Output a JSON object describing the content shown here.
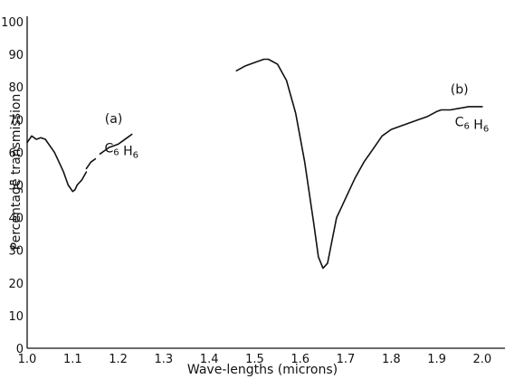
{
  "chart_data": {
    "type": "line",
    "title": "",
    "xlabel": "Wave-lengths (microns)",
    "ylabel": "Percentage transmission",
    "xlim": [
      1.0,
      2.05
    ],
    "ylim": [
      0,
      100
    ],
    "x_ticks": [
      "1.0",
      "1.1",
      "1.2",
      "1.3",
      "1.4",
      "1.5",
      "1.6",
      "1.7",
      "1.8",
      "1.9",
      "2.0"
    ],
    "x_tick_values": [
      1.0,
      1.1,
      1.2,
      1.3,
      1.4,
      1.5,
      1.6,
      1.7,
      1.8,
      1.9,
      2.0
    ],
    "y_ticks": [
      "0",
      "10",
      "20",
      "30",
      "40",
      "50",
      "60",
      "70",
      "80",
      "90",
      "100"
    ],
    "y_tick_values": [
      0,
      10,
      20,
      30,
      40,
      50,
      60,
      70,
      80,
      90,
      100
    ],
    "grid": false,
    "series": [
      {
        "name": "(a)",
        "formula": "C6 H6",
        "segments": [
          {
            "x": [
              1.0,
              1.01,
              1.02,
              1.03,
              1.04,
              1.05,
              1.06,
              1.07,
              1.08,
              1.09,
              1.1,
              1.105,
              1.11,
              1.12,
              1.13
            ],
            "y": [
              63,
              65,
              64,
              64.5,
              64,
              62,
              60,
              57,
              54,
              50,
              48,
              48.5,
              50,
              51.5,
              54
            ]
          },
          {
            "x": [
              1.13,
              1.14,
              1.15
            ],
            "y": [
              55,
              57,
              58
            ]
          },
          {
            "x": [
              1.16,
              1.17,
              1.18,
              1.19,
              1.2,
              1.21,
              1.22,
              1.23
            ],
            "y": [
              59.5,
              60.5,
              61.5,
              62,
              62.5,
              63.5,
              64.5,
              65.5
            ]
          }
        ]
      },
      {
        "name": "(b)",
        "formula": "C6 H6",
        "segments": [
          {
            "x": [
              1.46,
              1.48,
              1.5,
              1.52,
              1.53,
              1.55,
              1.57,
              1.59,
              1.61,
              1.63,
              1.64,
              1.65,
              1.66,
              1.67,
              1.68,
              1.69,
              1.7,
              1.72,
              1.74,
              1.76,
              1.78,
              1.8,
              1.82,
              1.84,
              1.86,
              1.88,
              1.9,
              1.91,
              1.93,
              1.95,
              1.97,
              2.0
            ],
            "y": [
              85,
              86.5,
              87.5,
              88.5,
              88.5,
              87,
              82,
              72,
              57,
              38,
              28,
              24.5,
              26,
              33,
              40,
              43,
              46,
              52,
              57,
              61,
              65,
              67,
              68,
              69,
              70,
              71,
              72.5,
              73,
              73,
              73.5,
              74,
              74
            ]
          }
        ]
      }
    ]
  }
}
